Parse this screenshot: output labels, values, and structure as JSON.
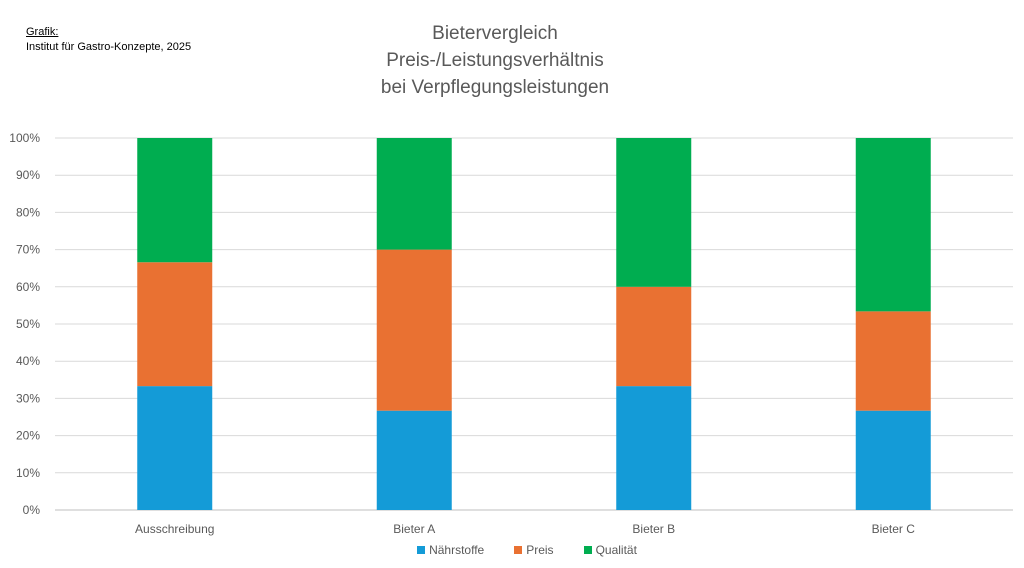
{
  "source": {
    "label": "Grafik:",
    "text": "Institut für Gastro-Konzepte, 2025"
  },
  "chart_data": {
    "type": "bar",
    "stacked": "percent",
    "title": [
      "Bietervergleich",
      "Preis-/Leistungsverhältnis",
      "bei Verpflegungsleistungen"
    ],
    "xlabel": "",
    "ylabel": "",
    "ylim": [
      0,
      100
    ],
    "yticks": [
      "0%",
      "10%",
      "20%",
      "30%",
      "40%",
      "50%",
      "60%",
      "70%",
      "80%",
      "90%",
      "100%"
    ],
    "grid": true,
    "legend_position": "bottom",
    "categories": [
      "Ausschreibung",
      "Bieter A",
      "Bieter B",
      "Bieter C"
    ],
    "series": [
      {
        "name": "Nährstoffe",
        "color": "#149BD7",
        "values": [
          33.3,
          26.7,
          33.3,
          26.7
        ]
      },
      {
        "name": "Preis",
        "color": "#E97132",
        "values": [
          33.3,
          43.3,
          26.7,
          26.7
        ]
      },
      {
        "name": "Qualität",
        "color": "#00AD50",
        "values": [
          33.4,
          30.0,
          40.0,
          46.6
        ]
      }
    ]
  }
}
